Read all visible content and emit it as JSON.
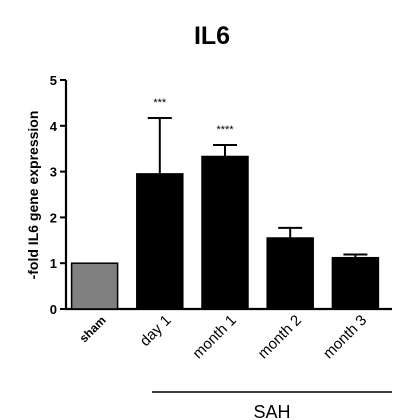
{
  "chart_data": {
    "type": "bar",
    "title": "IL6",
    "ylabel": "-fold IL6 gene expression",
    "xlabel": "",
    "ylim": [
      0,
      5
    ],
    "yticks": [
      "0",
      "1",
      "2",
      "3",
      "4",
      "5"
    ],
    "categories": [
      "sham",
      "day 1",
      "month 1",
      "month 2",
      "month 3"
    ],
    "values": [
      1.0,
      2.95,
      3.33,
      1.55,
      1.12
    ],
    "error_upper": [
      0.0,
      1.22,
      0.25,
      0.22,
      0.07
    ],
    "significance": [
      "",
      "***",
      "****",
      "",
      ""
    ],
    "colors": [
      "#808080",
      "#000000",
      "#000000",
      "#000000",
      "#000000"
    ],
    "group_label": "SAH",
    "grid": false
  }
}
